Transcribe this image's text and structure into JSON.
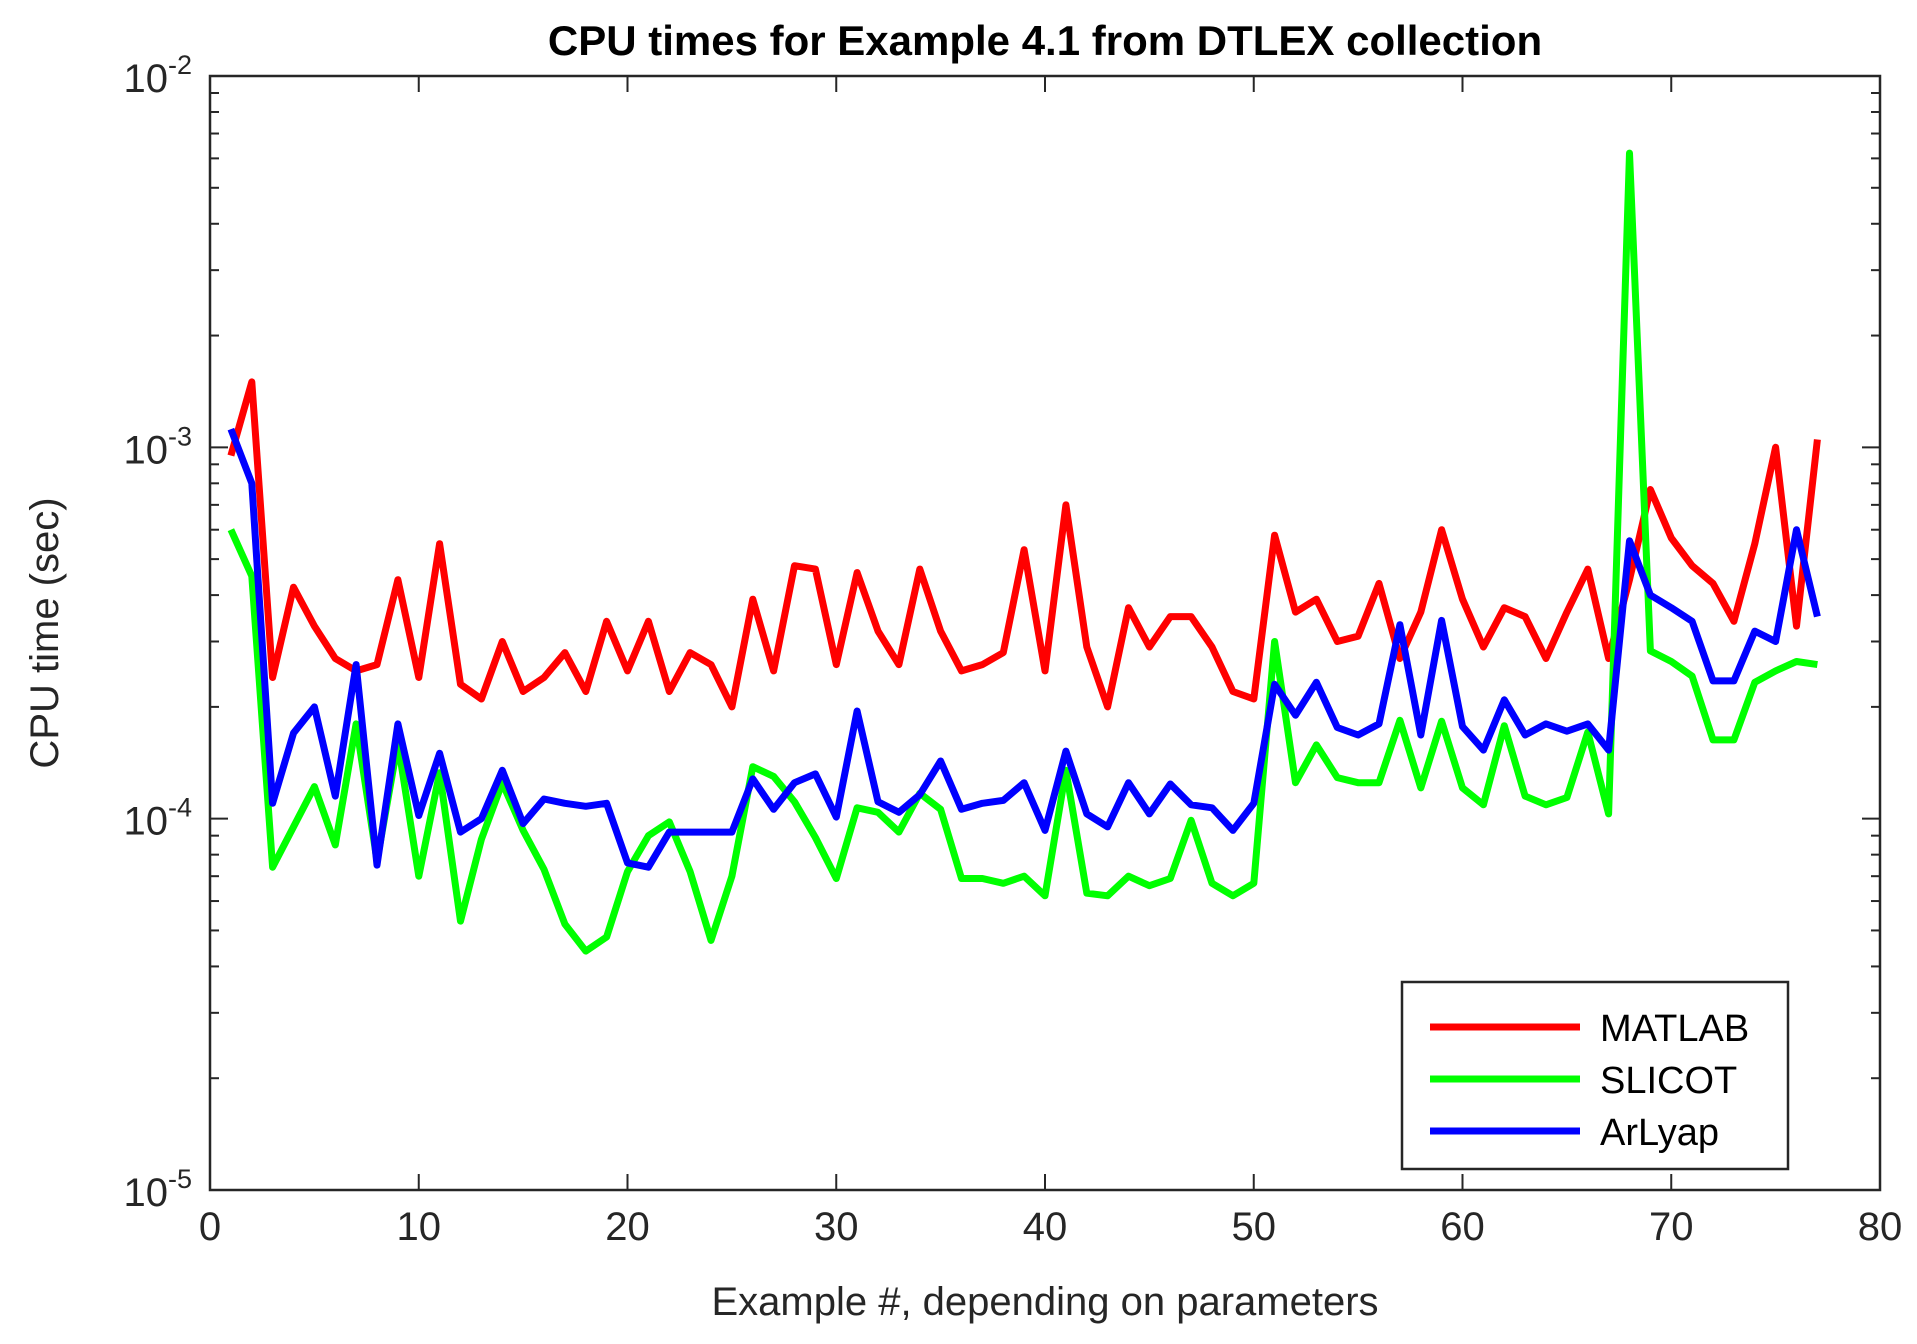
{
  "chart_data": {
    "type": "line",
    "title": "CPU times for Example 4.1 from DTLEX collection",
    "xlabel": "Example #, depending on parameters",
    "ylabel": "CPU time (sec)",
    "yscale": "log",
    "xlim": [
      0,
      80
    ],
    "ylim": [
      1e-05,
      0.01
    ],
    "x_ticks": [
      0,
      10,
      20,
      30,
      40,
      50,
      60,
      70,
      80
    ],
    "y_ticks": [
      {
        "base": "10",
        "exp": "-5",
        "value": 1e-05
      },
      {
        "base": "10",
        "exp": "-4",
        "value": 0.0001
      },
      {
        "base": "10",
        "exp": "-3",
        "value": 0.001
      },
      {
        "base": "10",
        "exp": "-2",
        "value": 0.01
      }
    ],
    "legend_position": "bottom-right",
    "series": [
      {
        "name": "MATLAB",
        "color": "#ff0000",
        "values": [
          0.00095,
          0.0015,
          0.00024,
          0.00042,
          0.00033,
          0.00027,
          0.00025,
          0.00026,
          0.00044,
          0.00024,
          0.00055,
          0.00023,
          0.00021,
          0.0003,
          0.00022,
          0.00024,
          0.00028,
          0.00022,
          0.00034,
          0.00025,
          0.00034,
          0.00022,
          0.00028,
          0.00026,
          0.0002,
          0.00039,
          0.00025,
          0.00048,
          0.00047,
          0.00026,
          0.00046,
          0.00032,
          0.00026,
          0.00047,
          0.00032,
          0.00025,
          0.00026,
          0.00028,
          0.00053,
          0.00025,
          0.0007,
          0.00029,
          0.0002,
          0.00037,
          0.00029,
          0.00035,
          0.00035,
          0.00029,
          0.00022,
          0.00021,
          0.00058,
          0.00036,
          0.00039,
          0.0003,
          0.00031,
          0.00043,
          0.00027,
          0.00036,
          0.0006,
          0.00039,
          0.00029,
          0.00037,
          0.00035,
          0.00027,
          0.00036,
          0.00047,
          0.00027,
          0.00044,
          0.00077,
          0.00057,
          0.00048,
          0.00043,
          0.00034,
          0.00055,
          0.001,
          0.00033,
          0.00105
        ]
      },
      {
        "name": "SLICOT",
        "color": "#00ff00",
        "values": [
          0.0006,
          0.00045,
          7.4e-05,
          9.5e-05,
          0.000122,
          8.5e-05,
          0.00018,
          7.7e-05,
          0.00016,
          7e-05,
          0.000133,
          5.3e-05,
          8.8e-05,
          0.000125,
          9.3e-05,
          7.3e-05,
          5.2e-05,
          4.4e-05,
          4.8e-05,
          7.2e-05,
          9e-05,
          9.8e-05,
          7.2e-05,
          4.7e-05,
          7e-05,
          0.000138,
          0.00013,
          0.000111,
          8.9e-05,
          6.9e-05,
          0.000107,
          0.000104,
          9.2e-05,
          0.000117,
          0.000106,
          6.9e-05,
          6.9e-05,
          6.7e-05,
          7e-05,
          6.2e-05,
          0.000135,
          6.3e-05,
          6.2e-05,
          7e-05,
          6.6e-05,
          6.9e-05,
          9.9e-05,
          6.7e-05,
          6.2e-05,
          6.7e-05,
          0.0003,
          0.000125,
          0.000158,
          0.000129,
          0.000125,
          0.000125,
          0.000184,
          0.000121,
          0.000183,
          0.000121,
          0.000109,
          0.000178,
          0.000115,
          0.000109,
          0.000114,
          0.000171,
          0.000103,
          0.0062,
          0.000283,
          0.000265,
          0.000242,
          0.000163,
          0.000163,
          0.000233,
          0.00025,
          0.000265,
          0.00026
        ]
      },
      {
        "name": "ArLyap",
        "color": "#0000ff",
        "values": [
          0.00112,
          0.0008,
          0.00011,
          0.00017,
          0.0002,
          0.000115,
          0.00026,
          7.5e-05,
          0.00018,
          0.000102,
          0.00015,
          9.2e-05,
          0.0001,
          0.000135,
          9.7e-05,
          0.000113,
          0.00011,
          0.000108,
          0.00011,
          7.6e-05,
          7.4e-05,
          9.2e-05,
          9.2e-05,
          9.2e-05,
          9.2e-05,
          0.000128,
          0.000106,
          0.000125,
          0.000132,
          0.000101,
          0.000195,
          0.000111,
          0.000104,
          0.000116,
          0.000143,
          0.000106,
          0.00011,
          0.000112,
          0.000125,
          9.3e-05,
          0.000152,
          0.000103,
          9.5e-05,
          0.000125,
          0.000103,
          0.000124,
          0.000109,
          0.000107,
          9.3e-05,
          0.00011,
          0.00023,
          0.00019,
          0.000233,
          0.000176,
          0.000168,
          0.00018,
          0.000333,
          0.000168,
          0.000342,
          0.000177,
          0.000153,
          0.000209,
          0.000168,
          0.00018,
          0.000172,
          0.00018,
          0.000153,
          0.00056,
          0.0004,
          0.00037,
          0.00034,
          0.000235,
          0.000235,
          0.00032,
          0.0003,
          0.0006,
          0.00035
        ]
      }
    ]
  }
}
